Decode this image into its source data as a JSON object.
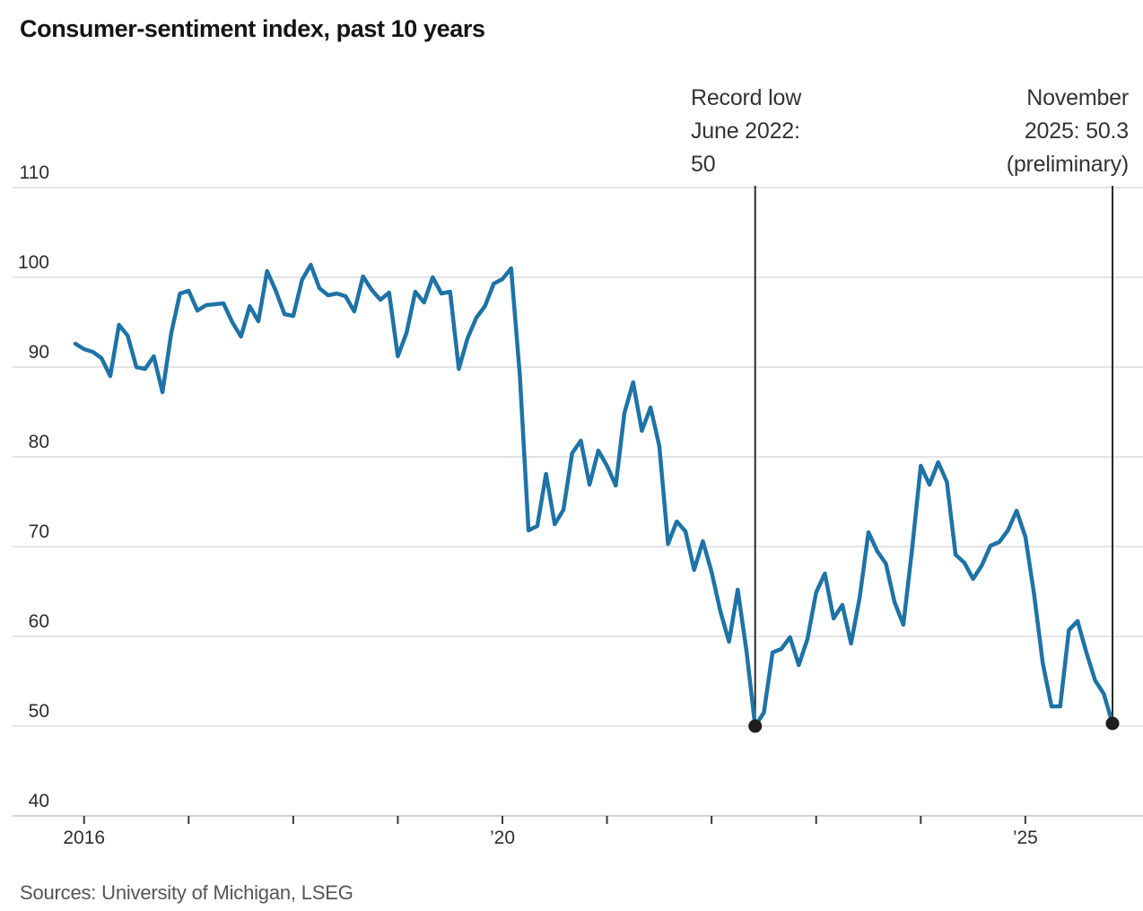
{
  "title": "Consumer-sentiment index, past 10 years",
  "source": "Sources: University of Michigan, LSEG",
  "annotations": {
    "items": [
      {
        "id": "record-low",
        "lines": [
          "Record low",
          "June 2022:",
          "50"
        ],
        "month_label": "June 2022",
        "month_index": 78,
        "value": 50.0,
        "align": "left"
      },
      {
        "id": "latest",
        "lines": [
          "November",
          "2025: 50.3",
          "(preliminary)"
        ],
        "month_label": "November 2025",
        "month_index": 119,
        "value": 50.3,
        "align": "right"
      }
    ]
  },
  "chart_data": {
    "type": "line",
    "series_name": "Consumer-sentiment index",
    "frequency": "monthly",
    "x_start": "2015-12",
    "x_end": "2025-11",
    "ylim": [
      40,
      110
    ],
    "grid": "horizontal-only",
    "line_color": "#1e73a6",
    "marker_color": "#1e1e1e",
    "grid_color": "#e4e4e4",
    "baseline_color": "#d2d2d2",
    "tick_color": "#3a3a3a",
    "y_axis": {
      "ticks": [
        40,
        50,
        60,
        70,
        80,
        90,
        100,
        110
      ]
    },
    "x_axis": {
      "tick_years": [
        2016,
        2017,
        2018,
        2019,
        2020,
        2021,
        2022,
        2023,
        2024,
        2025
      ],
      "labels": [
        {
          "year": 2016,
          "label": "2016"
        },
        {
          "year": 2020,
          "label": "’20"
        },
        {
          "year": 2025,
          "label": "’25"
        }
      ]
    },
    "values": [
      92.6,
      92.0,
      91.7,
      91.0,
      89.0,
      94.7,
      93.5,
      90.0,
      89.8,
      91.2,
      87.2,
      93.8,
      98.2,
      98.5,
      96.3,
      96.9,
      97.0,
      97.1,
      95.0,
      93.4,
      96.8,
      95.1,
      100.7,
      98.5,
      95.9,
      95.7,
      99.7,
      101.4,
      98.8,
      98.0,
      98.2,
      97.9,
      96.2,
      100.1,
      98.6,
      97.5,
      98.3,
      91.2,
      93.8,
      98.4,
      97.2,
      100.0,
      98.2,
      98.4,
      89.8,
      93.2,
      95.5,
      96.8,
      99.3,
      99.8,
      101.0,
      89.1,
      71.8,
      72.3,
      78.1,
      72.5,
      74.1,
      80.4,
      81.8,
      76.9,
      80.7,
      79.0,
      76.8,
      84.9,
      88.3,
      82.9,
      85.5,
      81.2,
      70.3,
      72.8,
      71.7,
      67.4,
      70.6,
      67.2,
      62.8,
      59.4,
      65.2,
      58.4,
      50.0,
      51.5,
      58.2,
      58.6,
      59.9,
      56.8,
      59.7,
      64.9,
      67.0,
      62.0,
      63.5,
      59.2,
      64.4,
      71.6,
      69.5,
      68.1,
      63.8,
      61.3,
      69.7,
      79.0,
      76.9,
      79.4,
      77.2,
      69.1,
      68.2,
      66.4,
      67.9,
      70.1,
      70.5,
      71.8,
      74.0,
      71.1,
      64.7,
      57.0,
      52.2,
      52.2,
      60.7,
      61.7,
      58.2,
      55.1,
      53.6,
      50.3
    ]
  }
}
